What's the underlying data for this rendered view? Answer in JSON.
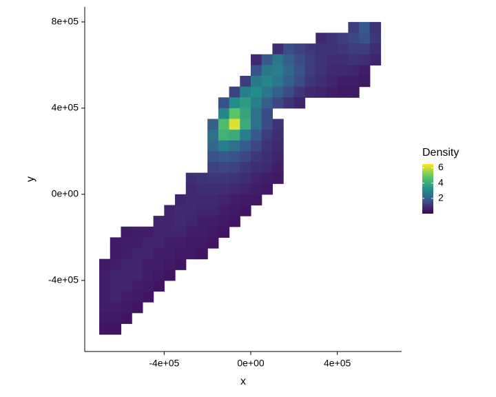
{
  "chart_data": {
    "type": "raster",
    "xlabel": "x",
    "ylabel": "y",
    "legend_title": "Density",
    "xlim": [
      -767000,
      697000
    ],
    "ylim": [
      -730000,
      870000
    ],
    "xticks": [
      {
        "value": -400000,
        "label": "-4e+05"
      },
      {
        "value": 0,
        "label": "0e+00"
      },
      {
        "value": 400000,
        "label": "4e+05"
      }
    ],
    "yticks": [
      {
        "value": -400000,
        "label": "-4e+05"
      },
      {
        "value": 0,
        "label": "0e+00"
      },
      {
        "value": 400000,
        "label": "4e+05"
      },
      {
        "value": 800000,
        "label": "8e+05"
      }
    ],
    "clim": [
      0,
      6.5
    ],
    "colorbar_ticks": [
      2,
      4,
      6
    ],
    "colors": [
      "#440154",
      "#3b528b",
      "#21908c",
      "#5dc863",
      "#fde725"
    ],
    "rows": [
      {
        "y": 775000,
        "x": 475000,
        "values": [
          1.2,
          1.8,
          1.0
        ]
      },
      {
        "y": 725000,
        "x": 325000,
        "values": [
          0.8,
          1.0,
          1.2,
          1.4,
          1.6,
          1.1
        ]
      },
      {
        "y": 675000,
        "x": 125000,
        "values": [
          0.9,
          1.5,
          1.3,
          1.1,
          1.0,
          1.0,
          1.1,
          1.2,
          1.2,
          0.9
        ]
      },
      {
        "y": 625000,
        "x": 25000,
        "values": [
          0.8,
          1.8,
          2.6,
          2.0,
          1.5,
          1.2,
          1.0,
          0.9,
          0.9,
          1.0,
          0.9,
          0.7
        ]
      },
      {
        "y": 575000,
        "x": 25000,
        "values": [
          1.6,
          2.6,
          2.8,
          2.2,
          1.6,
          1.2,
          1.0,
          0.8,
          0.8,
          0.7,
          0.6
        ]
      },
      {
        "y": 525000,
        "x": -25000,
        "values": [
          1.2,
          2.6,
          3.0,
          2.6,
          2.0,
          1.5,
          1.1,
          0.9,
          0.7,
          0.6,
          0.6,
          0.5
        ]
      },
      {
        "y": 475000,
        "x": -75000,
        "values": [
          1.3,
          2.8,
          3.2,
          2.6,
          2.0,
          1.5,
          1.1,
          0.8,
          0.7,
          0.6,
          0.5,
          0.5
        ]
      },
      {
        "y": 425000,
        "x": -125000,
        "values": [
          1.6,
          3.2,
          3.6,
          2.8,
          2.0,
          1.4,
          1.0,
          0.7
        ]
      },
      {
        "y": 375000,
        "x": -125000,
        "values": [
          3.0,
          4.8,
          3.8,
          2.4,
          1.5
        ]
      },
      {
        "y": 325000,
        "x": -175000,
        "values": [
          2.0,
          4.5,
          6.2,
          4.0,
          2.4,
          1.5,
          1.0
        ]
      },
      {
        "y": 275000,
        "x": -175000,
        "values": [
          2.4,
          4.2,
          4.0,
          2.8,
          1.8,
          1.2,
          0.9
        ]
      },
      {
        "y": 225000,
        "x": -175000,
        "values": [
          2.2,
          2.8,
          2.4,
          1.9,
          1.4,
          1.0,
          0.8
        ]
      },
      {
        "y": 175000,
        "x": -175000,
        "values": [
          1.6,
          1.8,
          1.6,
          1.4,
          1.1,
          0.9,
          0.7
        ]
      },
      {
        "y": 125000,
        "x": -175000,
        "values": [
          1.3,
          1.4,
          1.3,
          1.1,
          0.9,
          0.8,
          0.6
        ]
      },
      {
        "y": 75000,
        "x": -275000,
        "values": [
          0.9,
          1.0,
          1.1,
          1.1,
          1.0,
          0.9,
          0.7,
          0.6,
          0.5
        ]
      },
      {
        "y": 25000,
        "x": -275000,
        "values": [
          0.8,
          0.9,
          0.9,
          0.9,
          0.8,
          0.7,
          0.6,
          0.5
        ]
      },
      {
        "y": -25000,
        "x": -325000,
        "values": [
          0.7,
          0.8,
          0.8,
          0.8,
          0.7,
          0.6,
          0.5,
          0.5
        ]
      },
      {
        "y": -75000,
        "x": -375000,
        "values": [
          0.7,
          0.8,
          0.8,
          0.7,
          0.7,
          0.6,
          0.5,
          0.4
        ]
      },
      {
        "y": -125000,
        "x": -425000,
        "values": [
          0.7,
          0.7,
          0.8,
          0.7,
          0.6,
          0.6,
          0.5,
          0.4
        ]
      },
      {
        "y": -175000,
        "x": -575000,
        "values": [
          0.5,
          0.6,
          0.6,
          0.7,
          0.7,
          0.7,
          0.6,
          0.6,
          0.5,
          0.4
        ]
      },
      {
        "y": -225000,
        "x": -625000,
        "values": [
          0.5,
          0.6,
          0.6,
          0.7,
          0.7,
          0.6,
          0.6,
          0.5,
          0.5,
          0.4
        ]
      },
      {
        "y": -275000,
        "x": -625000,
        "values": [
          0.5,
          0.6,
          0.7,
          0.7,
          0.6,
          0.6,
          0.5,
          0.5,
          0.4
        ]
      },
      {
        "y": -325000,
        "x": -675000,
        "values": [
          0.5,
          0.6,
          0.7,
          0.7,
          0.6,
          0.6,
          0.5,
          0.4
        ]
      },
      {
        "y": -375000,
        "x": -675000,
        "values": [
          0.6,
          0.7,
          0.7,
          0.7,
          0.6,
          0.5,
          0.4
        ]
      },
      {
        "y": -425000,
        "x": -675000,
        "values": [
          0.6,
          0.7,
          0.7,
          0.6,
          0.5,
          0.4
        ]
      },
      {
        "y": -475000,
        "x": -675000,
        "values": [
          0.6,
          0.7,
          0.6,
          0.5,
          0.4
        ]
      },
      {
        "y": -525000,
        "x": -675000,
        "values": [
          0.6,
          0.6,
          0.5,
          0.4
        ]
      },
      {
        "y": -575000,
        "x": -675000,
        "values": [
          0.5,
          0.5,
          0.4
        ]
      },
      {
        "y": -625000,
        "x": -675000,
        "values": [
          0.4,
          0.4
        ]
      }
    ]
  }
}
